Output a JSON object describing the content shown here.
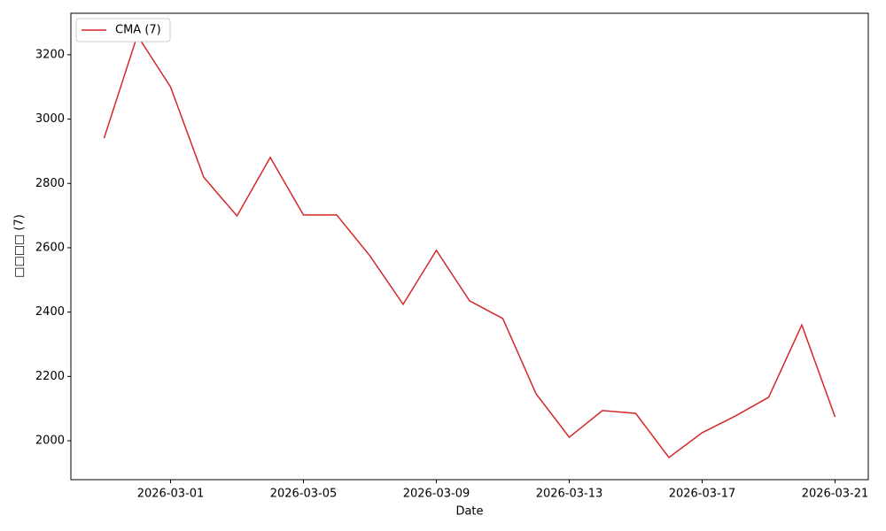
{
  "chart_data": {
    "type": "line",
    "xlabel": "Date",
    "ylabel": "□□□□ (7)",
    "x": [
      "2026-02-27",
      "2026-02-28",
      "2026-03-01",
      "2026-03-02",
      "2026-03-03",
      "2026-03-04",
      "2026-03-05",
      "2026-03-06",
      "2026-03-07",
      "2026-03-08",
      "2026-03-09",
      "2026-03-10",
      "2026-03-11",
      "2026-03-12",
      "2026-03-13",
      "2026-03-14",
      "2026-03-15",
      "2026-03-16",
      "2026-03-17",
      "2026-03-18",
      "2026-03-19",
      "2026-03-20",
      "2026-03-21"
    ],
    "series": [
      {
        "name": "CMA (7)",
        "color": "#d62728",
        "values": [
          2941,
          3260,
          3100,
          2819,
          2699,
          2881,
          2702,
          2702,
          2575,
          2424,
          2592,
          2435,
          2380,
          2146,
          2011,
          2094,
          2085,
          1948,
          2025,
          2077,
          2135,
          2360,
          2074
        ]
      }
    ],
    "xlim": [
      "2026-02-26",
      "2026-03-22"
    ],
    "xticks": [
      "2026-03-01",
      "2026-03-05",
      "2026-03-09",
      "2026-03-13",
      "2026-03-17",
      "2026-03-21"
    ],
    "ylim": [
      1879,
      3329
    ],
    "yticks": [
      2000,
      2200,
      2400,
      2600,
      2800,
      3000,
      3200
    ],
    "grid": false,
    "legend": "upper left"
  }
}
